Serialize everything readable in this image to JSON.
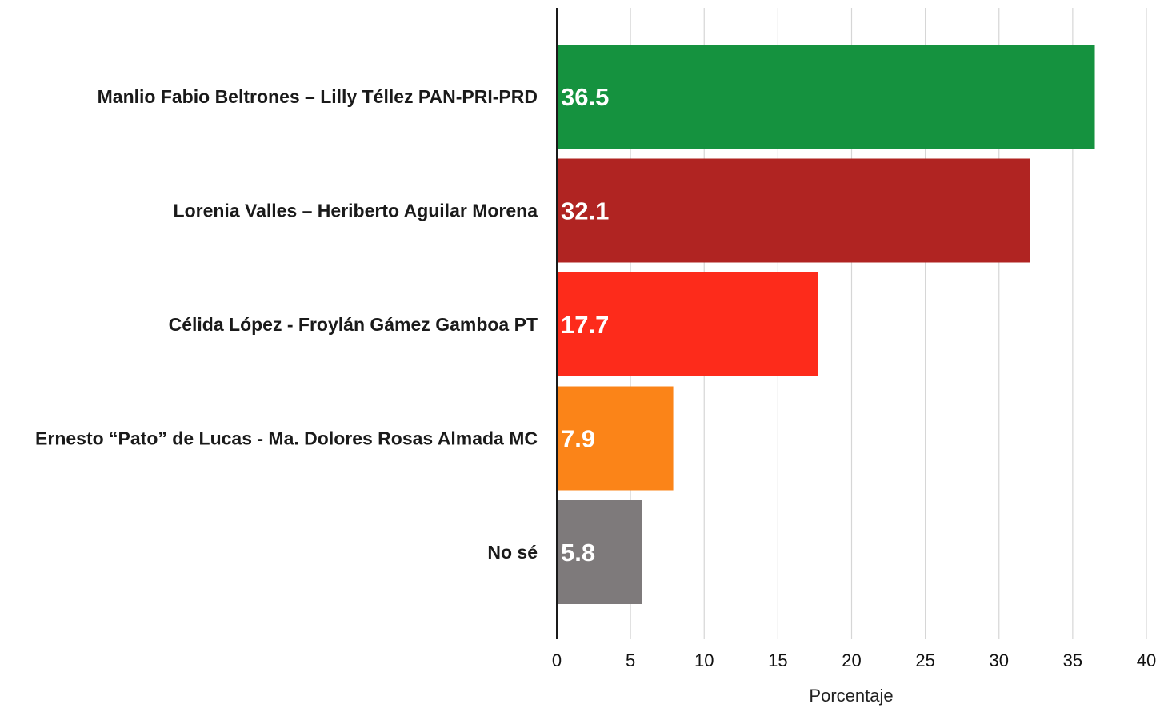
{
  "chart_data": {
    "type": "bar",
    "orientation": "horizontal",
    "categories": [
      "Manlio Fabio Beltrones – Lilly Téllez PAN-PRI-PRD",
      "Lorenia Valles – Heriberto Aguilar Morena",
      "Célida López - Froylán Gámez Gamboa PT",
      "Ernesto “Pato” de Lucas - Ma. Dolores Rosas Almada MC",
      "No sé"
    ],
    "values": [
      36.5,
      32.1,
      17.7,
      7.9,
      5.8
    ],
    "value_labels": [
      "36.5",
      "32.1",
      "17.7",
      "7.9",
      "5.8"
    ],
    "colors": [
      "#15923f",
      "#b02422",
      "#fd2b1b",
      "#fb8418",
      "#7e7a7b"
    ],
    "xlabel": "Porcentaje",
    "ylabel": "",
    "title": "",
    "xlim": [
      0,
      40
    ],
    "xticks": [
      0,
      5,
      10,
      15,
      20,
      25,
      30,
      35,
      40
    ],
    "xtick_labels": [
      "0",
      "5",
      "10",
      "15",
      "20",
      "25",
      "30",
      "35",
      "40"
    ],
    "grid": true,
    "legend": "none"
  }
}
